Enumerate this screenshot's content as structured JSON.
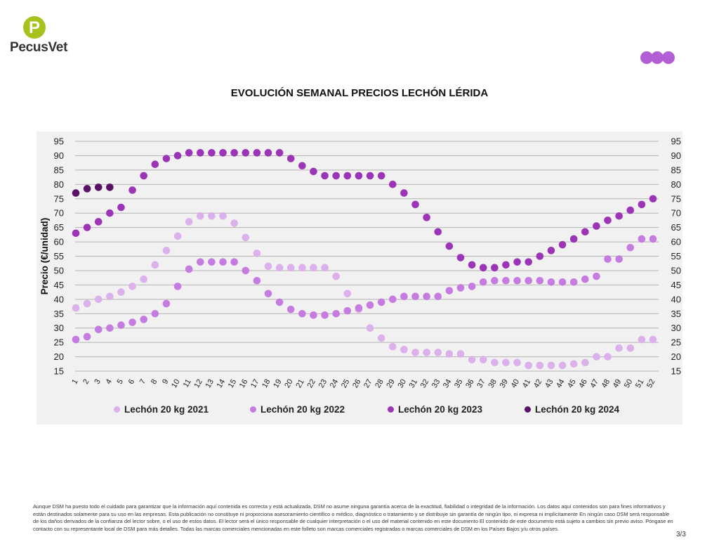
{
  "brand": {
    "name": "PecusVet",
    "logo_color": "#a6c21c"
  },
  "header_dots_color": "#b25fd6",
  "chart_data": {
    "type": "scatter",
    "title": "EVOLUCIÓN SEMANAL PRECIOS LECHÓN LÉRIDA",
    "ylabel": "Precio (€/unidad)",
    "xlabel": "",
    "ylim": [
      15,
      95
    ],
    "y_ticks": [
      15,
      20,
      25,
      30,
      35,
      40,
      45,
      50,
      55,
      60,
      65,
      70,
      75,
      80,
      85,
      90,
      95
    ],
    "x": [
      1,
      2,
      3,
      4,
      5,
      6,
      7,
      8,
      9,
      10,
      11,
      12,
      13,
      14,
      15,
      16,
      17,
      18,
      19,
      20,
      21,
      22,
      23,
      24,
      25,
      26,
      27,
      28,
      29,
      30,
      31,
      32,
      33,
      34,
      35,
      36,
      37,
      38,
      39,
      40,
      41,
      42,
      43,
      44,
      45,
      46,
      47,
      48,
      49,
      50,
      51,
      52
    ],
    "grid": true,
    "legend_position": "bottom",
    "series": [
      {
        "name": "Lechón 20 kg 2021",
        "color": "#dcb0ea",
        "values": [
          37,
          38.5,
          40,
          41,
          42.5,
          44.5,
          47,
          52,
          57,
          62,
          67,
          69,
          69,
          69,
          66.5,
          61.5,
          56,
          51.5,
          51,
          51,
          51,
          51,
          51,
          48,
          42,
          36.5,
          30,
          26.5,
          23.5,
          22.5,
          21.5,
          21.5,
          21.5,
          21,
          21,
          19,
          19,
          18,
          18,
          18,
          17,
          17,
          17,
          17,
          17.5,
          18,
          20,
          20,
          23,
          23,
          26,
          26
        ]
      },
      {
        "name": "Lechón 20 kg 2022",
        "color": "#c67be0",
        "values": [
          26,
          27,
          29.5,
          30,
          31,
          32,
          33,
          35,
          38.5,
          44.5,
          50.5,
          53,
          53,
          53,
          53,
          50,
          46.5,
          42,
          39,
          36.5,
          35,
          34.5,
          34.5,
          35,
          36,
          37,
          38,
          39,
          40,
          41,
          41,
          41,
          41,
          43,
          44,
          44.5,
          46,
          46.5,
          46.5,
          46.5,
          46.5,
          46.5,
          46,
          46,
          46,
          47,
          48,
          54,
          54,
          58,
          61,
          61
        ]
      },
      {
        "name": "Lechón 20 kg 2023",
        "color": "#9b34b6",
        "values": [
          63,
          65,
          67,
          70,
          72,
          78,
          83,
          87,
          89,
          90,
          91,
          91,
          91,
          91,
          91,
          91,
          91,
          91,
          91,
          89,
          86.5,
          84.5,
          83,
          83,
          83,
          83,
          83,
          83,
          80,
          77,
          73,
          68.5,
          63.5,
          58.5,
          54.5,
          52,
          51,
          51,
          52,
          53,
          53,
          55,
          57,
          59,
          61,
          63.5,
          65.5,
          67.5,
          69,
          71,
          73,
          75
        ]
      },
      {
        "name": "Lechón 20 kg 2024",
        "color": "#5a1266",
        "values": [
          77,
          78.5,
          79,
          79
        ]
      }
    ]
  },
  "footer": {
    "disclaimer": "Aunque DSM ha puesto todo el cuidado para garantizar que la información aquí contenida es correcta y está actualizada, DSM no asume ninguna garantía acerca de la exactitud, fiabilidad o integridad de la información. Los datos aquí contenidos son para fines informativos y están destinados solamente para su uso en las empresas. Esta publicación no constituye ni proporciona asesoramiento científico o médico, diagnóstico o tratamiento y se distribuye sin garantía de ningún tipo, ni expresa ni implícitamente En ningún caso DSM será responsable de los daños derivados de la confianza del lector sobre, o el uso de estos datos. El lector será el único responsable de cualquier interpretación o el uso del material contenido en este documento El contenido de este documento está sujeto a cambios sin previo aviso. Póngase en contacto con su representante local de DSM para más detalles. Todas las marcas comerciales mencionadas en este folleto son marcas comerciales registradas o marcas comerciales de DSM en los Países Bajos y/u otros países.",
    "page": "3/3"
  }
}
